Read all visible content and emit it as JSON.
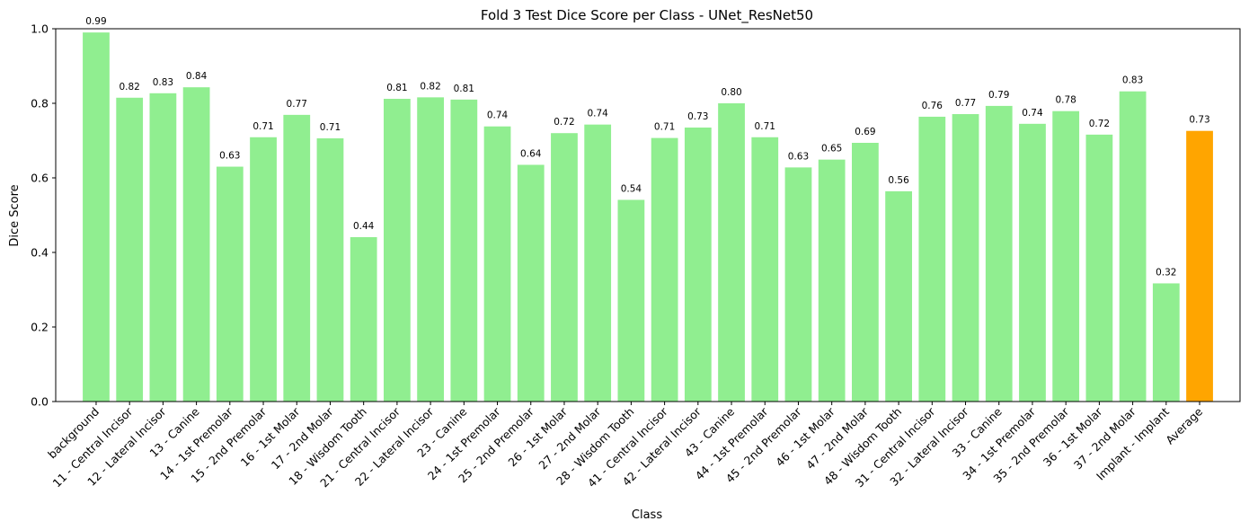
{
  "chart_data": {
    "type": "bar",
    "title": "Fold 3 Test Dice Score per Class - UNet_ResNet50",
    "xlabel": "Class",
    "ylabel": "Dice Score",
    "ylim": [
      0,
      1.0
    ],
    "yticks": [
      "0.0",
      "0.2",
      "0.4",
      "0.6",
      "0.8",
      "1.0"
    ],
    "grid": false,
    "bar_color": "#90ee90",
    "highlight_color": "#ffa500",
    "highlight_category": "Average",
    "categories": [
      "background",
      "11 - Central Incisor",
      "12 - Lateral Incisor",
      "13 - Canine",
      "14 - 1st Premolar",
      "15 - 2nd Premolar",
      "16 - 1st Molar",
      "17 - 2nd Molar",
      "18 - Wisdom Tooth",
      "21 - Central Incisor",
      "22 - Lateral Incisor",
      "23 - Canine",
      "24 - 1st Premolar",
      "25 - 2nd Premolar",
      "26 - 1st Molar",
      "27 - 2nd Molar",
      "28 - Wisdom Tooth",
      "41 - Central Incisor",
      "42 - Lateral Incisor",
      "43 - Canine",
      "44 - 1st Premolar",
      "45 - 2nd Premolar",
      "46 - 1st Molar",
      "47 - 2nd Molar",
      "48 - Wisdom Tooth",
      "31 - Central Incisor",
      "32 - Lateral Incisor",
      "33 - Canine",
      "34 - 1st Premolar",
      "35 - 2nd Premolar",
      "36 - 1st Molar",
      "37 - 2nd Molar",
      "Implant - Implant",
      "Average"
    ],
    "values": [
      0.99,
      0.815,
      0.827,
      0.843,
      0.63,
      0.709,
      0.769,
      0.706,
      0.441,
      0.812,
      0.816,
      0.81,
      0.738,
      0.635,
      0.72,
      0.743,
      0.541,
      0.707,
      0.735,
      0.8,
      0.709,
      0.628,
      0.649,
      0.694,
      0.564,
      0.764,
      0.771,
      0.793,
      0.745,
      0.779,
      0.716,
      0.832,
      0.317,
      0.726
    ],
    "value_labels": [
      "0.99",
      "0.82",
      "0.83",
      "0.84",
      "0.63",
      "0.71",
      "0.77",
      "0.71",
      "0.44",
      "0.81",
      "0.82",
      "0.81",
      "0.74",
      "0.64",
      "0.72",
      "0.74",
      "0.54",
      "0.71",
      "0.73",
      "0.80",
      "0.71",
      "0.63",
      "0.65",
      "0.69",
      "0.56",
      "0.76",
      "0.77",
      "0.79",
      "0.74",
      "0.78",
      "0.72",
      "0.83",
      "0.32",
      "0.73"
    ]
  }
}
